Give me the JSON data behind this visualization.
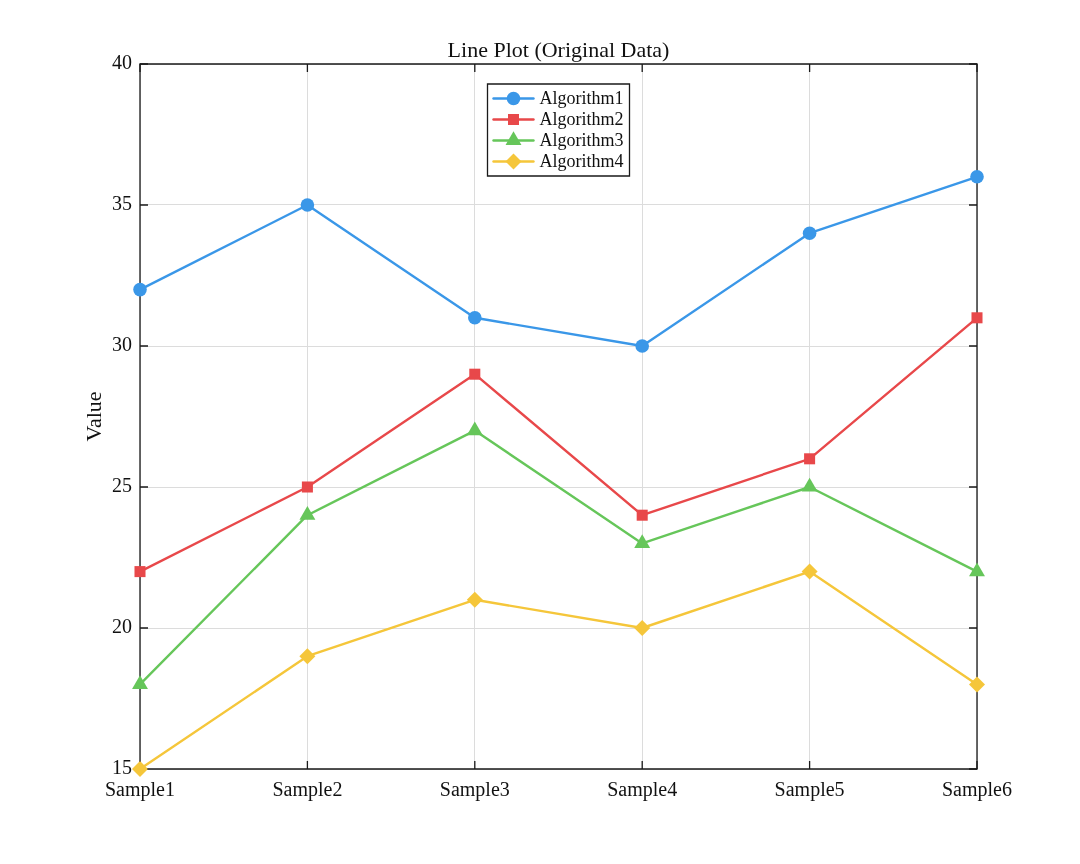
{
  "chart_data": {
    "type": "line",
    "title": "Line Plot (Original Data)",
    "ylabel": "Value",
    "categories": [
      "Sample1",
      "Sample2",
      "Sample3",
      "Sample4",
      "Sample5",
      "Sample6"
    ],
    "series": [
      {
        "name": "Algorithm1",
        "color": "#3a97e8",
        "marker": "circle",
        "values": [
          32,
          35,
          31,
          30,
          34,
          36
        ]
      },
      {
        "name": "Algorithm2",
        "color": "#e8484a",
        "marker": "square",
        "values": [
          22,
          25,
          29,
          24,
          26,
          31
        ]
      },
      {
        "name": "Algorithm3",
        "color": "#66c65a",
        "marker": "triangle",
        "values": [
          18,
          24,
          27,
          23,
          25,
          22
        ]
      },
      {
        "name": "Algorithm4",
        "color": "#f5c63a",
        "marker": "diamond",
        "values": [
          15,
          19,
          21,
          20,
          22,
          18
        ]
      }
    ],
    "ylim": [
      15,
      40
    ],
    "yticks": [
      15,
      20,
      25,
      30,
      35,
      40
    ],
    "grid": true,
    "legend": "top",
    "line_style": "solid"
  }
}
